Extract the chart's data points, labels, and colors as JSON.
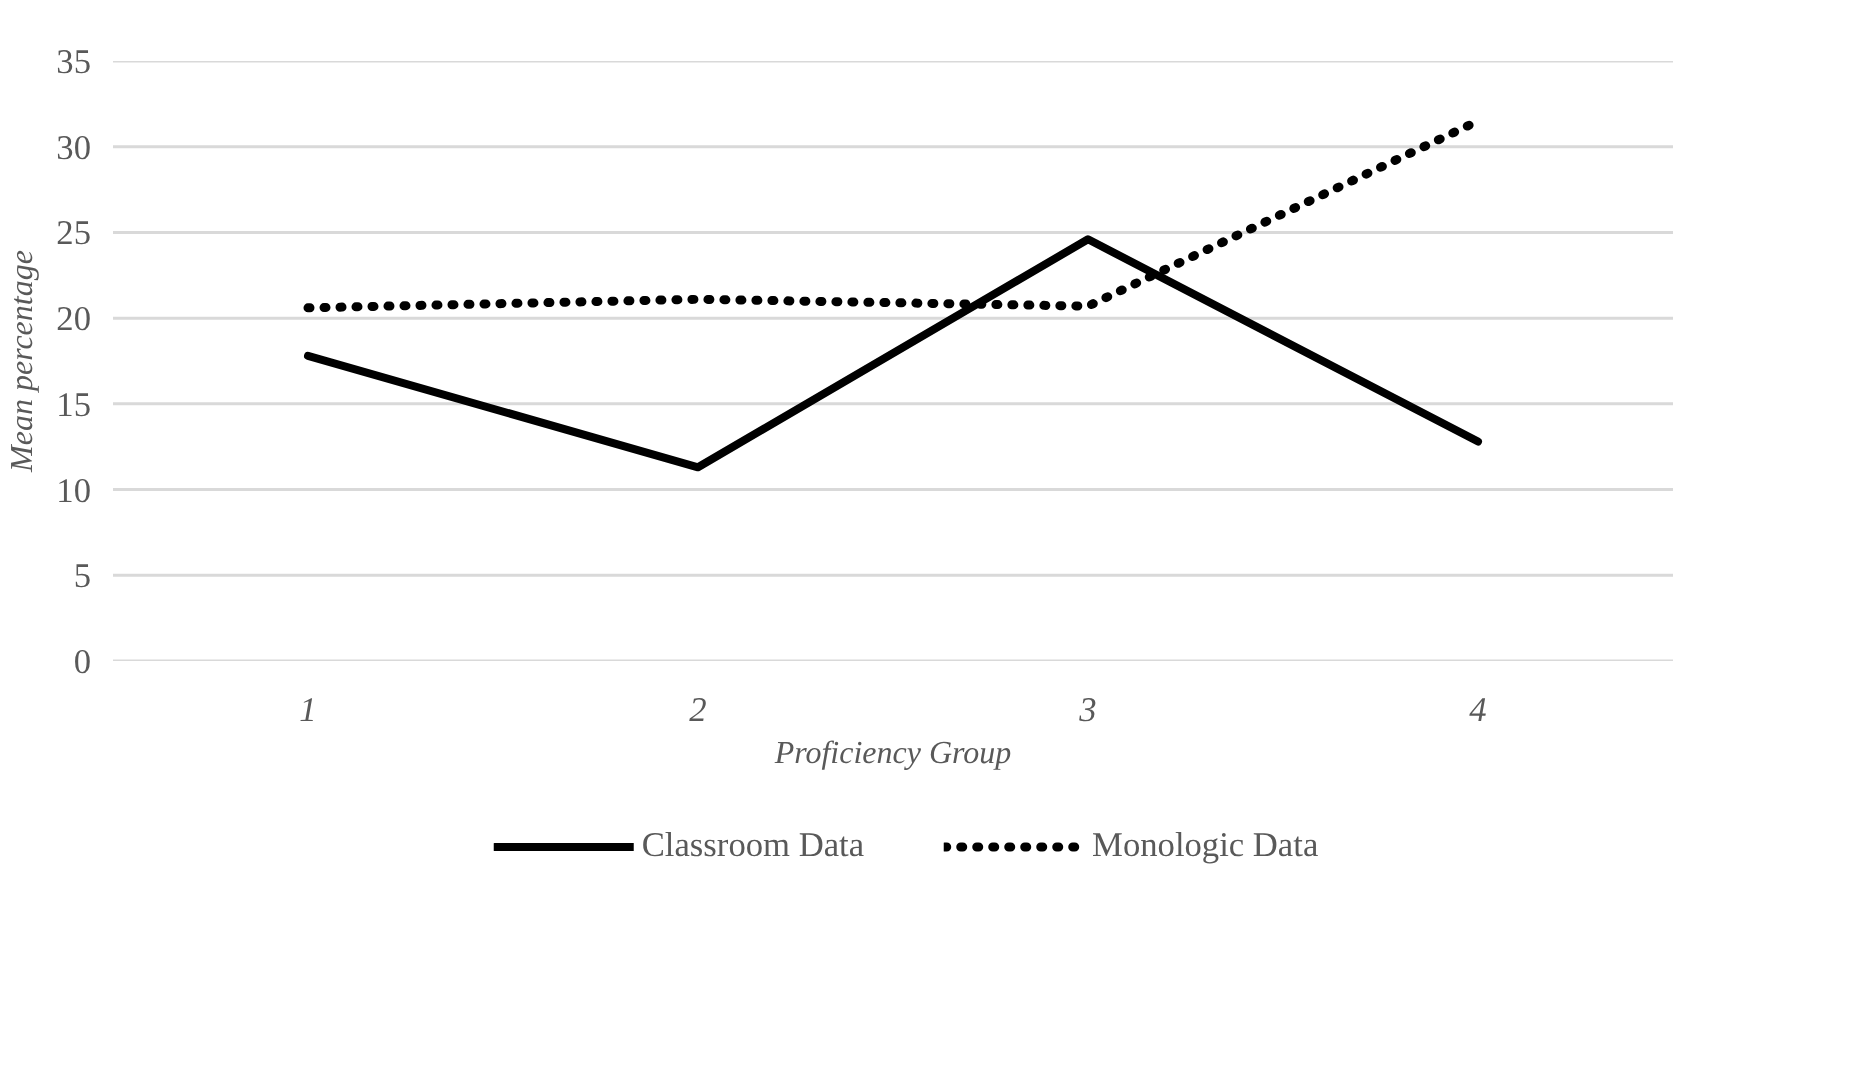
{
  "chart_data": {
    "type": "line",
    "xlabel": "Proficiency Group",
    "ylabel": "Mean percentage",
    "categories": [
      "1",
      "2",
      "3",
      "4"
    ],
    "series": [
      {
        "name": "Classroom Data",
        "color": "#000000",
        "line_style": "solid",
        "values": [
          17.8,
          11.3,
          24.6,
          12.8
        ]
      },
      {
        "name": "Monologic Data",
        "color": "#000000",
        "line_style": "dotted",
        "values": [
          20.6,
          21.1,
          20.7,
          31.5
        ]
      }
    ],
    "ylim": [
      0,
      35
    ],
    "yticks": [
      0,
      5,
      10,
      15,
      20,
      25,
      30,
      35
    ],
    "grid": "y",
    "legend": "bottom"
  }
}
